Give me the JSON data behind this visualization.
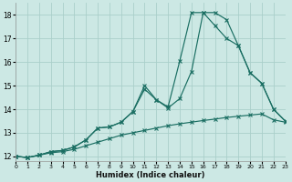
{
  "xlabel": "Humidex (Indice chaleur)",
  "bg_color": "#cce8e4",
  "grid_color": "#aacfca",
  "line_color": "#1a6e62",
  "xlim": [
    0,
    23
  ],
  "ylim": [
    11.8,
    18.5
  ],
  "yticks": [
    12,
    13,
    14,
    15,
    16,
    17,
    18
  ],
  "xticks": [
    0,
    1,
    2,
    3,
    4,
    5,
    6,
    7,
    8,
    9,
    10,
    11,
    12,
    13,
    14,
    15,
    16,
    17,
    18,
    19,
    20,
    21,
    22,
    23
  ],
  "line1_x": [
    0,
    1,
    2,
    3,
    4,
    5,
    6,
    7,
    8,
    9,
    10,
    11,
    12,
    13,
    14,
    15,
    16,
    17,
    18,
    19,
    20,
    21,
    22,
    23
  ],
  "line1_y": [
    12.0,
    11.95,
    12.05,
    12.15,
    12.2,
    12.3,
    12.45,
    12.6,
    12.75,
    12.9,
    13.0,
    13.1,
    13.2,
    13.3,
    13.38,
    13.45,
    13.52,
    13.58,
    13.65,
    13.7,
    13.75,
    13.8,
    13.55,
    13.45
  ],
  "line2_x": [
    0,
    1,
    2,
    3,
    4,
    5,
    6,
    7,
    8,
    9,
    10,
    11,
    12,
    13,
    14,
    15,
    16,
    17,
    18,
    19,
    20,
    21,
    22,
    23
  ],
  "line2_y": [
    12.0,
    11.95,
    12.05,
    12.2,
    12.25,
    12.4,
    12.7,
    13.2,
    13.25,
    13.45,
    13.9,
    14.85,
    14.4,
    14.05,
    14.45,
    15.6,
    18.1,
    18.1,
    17.8,
    16.7,
    15.55,
    15.1,
    14.0,
    13.5
  ],
  "line3_x": [
    0,
    1,
    2,
    3,
    4,
    5,
    6,
    7,
    8,
    9,
    10,
    11,
    12,
    13,
    14,
    15,
    16,
    17,
    18,
    19,
    20,
    21,
    22,
    23
  ],
  "line3_y": [
    12.0,
    11.95,
    12.05,
    12.2,
    12.25,
    12.4,
    12.7,
    13.2,
    13.25,
    13.45,
    13.9,
    15.0,
    14.4,
    14.1,
    16.05,
    18.1,
    18.1,
    17.55,
    17.0,
    16.7,
    15.55,
    15.1,
    14.0,
    13.5
  ]
}
